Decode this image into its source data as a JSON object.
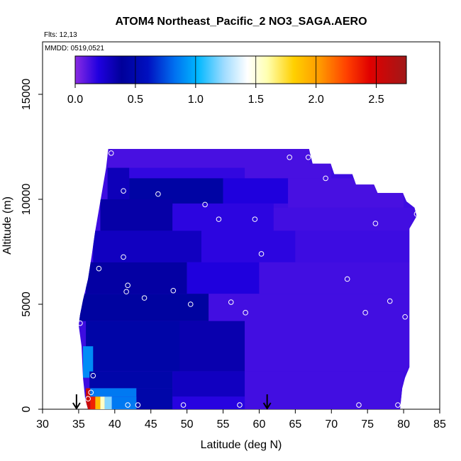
{
  "chart_data": {
    "type": "heatmap",
    "title": "ATOM4 Northeast_Pacific_2 NO3_SAGA.AERO",
    "flights_label": "Flts: 12,13",
    "dates_label": "MMDD: 0519,0521",
    "xlabel": "Latitude (deg N)",
    "ylabel": "Altitude (m)",
    "xlim": [
      30,
      85
    ],
    "ylim": [
      0,
      17500
    ],
    "x_ticks": [
      "30",
      "35",
      "40",
      "45",
      "50",
      "55",
      "60",
      "65",
      "70",
      "75",
      "80",
      "85"
    ],
    "y_ticks": [
      "0",
      "5000",
      "10000",
      "15000"
    ],
    "colorbar": {
      "range": [
        0,
        2.75
      ],
      "tick_labels": [
        "0.0",
        "0.5",
        "1.0",
        "1.5",
        "2.0",
        "2.5"
      ],
      "placement": "top-inside"
    },
    "arrows_at_latitude": [
      34.7,
      61.1
    ],
    "profile_extent": [
      [
        36.3,
        0
      ],
      [
        35.9,
        500
      ],
      [
        35.6,
        1500
      ],
      [
        35.4,
        3000
      ],
      [
        35,
        4000
      ],
      [
        35.2,
        4500
      ],
      [
        35.6,
        5200
      ],
      [
        36.3,
        6200
      ],
      [
        36.8,
        7300
      ],
      [
        37.3,
        8500
      ],
      [
        37.8,
        9500
      ],
      [
        38.3,
        10500
      ],
      [
        38.8,
        11500
      ],
      [
        39.1,
        12400
      ],
      [
        66.9,
        12400
      ],
      [
        67.4,
        11700
      ],
      [
        69.9,
        11700
      ],
      [
        70.4,
        11200
      ],
      [
        72.9,
        11200
      ],
      [
        73.4,
        10700
      ],
      [
        75.9,
        10700
      ],
      [
        76.4,
        10300
      ],
      [
        79.9,
        10300
      ],
      [
        80.4,
        9900
      ],
      [
        81.5,
        9600
      ],
      [
        81.8,
        9200
      ],
      [
        80.8,
        8600
      ],
      [
        80.8,
        2000
      ],
      [
        80.2,
        1500
      ],
      [
        79.8,
        1000
      ],
      [
        79.5,
        0
      ]
    ],
    "cells": [
      {
        "lat": [
          39,
          67
        ],
        "alt": [
          11500,
          12400
        ],
        "value": 0.12
      },
      {
        "lat": [
          42,
          58
        ],
        "alt": [
          11000,
          11500
        ],
        "value": 0.16
      },
      {
        "lat": [
          58,
          70
        ],
        "alt": [
          11000,
          11700
        ],
        "value": 0.12
      },
      {
        "lat": [
          39,
          42
        ],
        "alt": [
          10000,
          11500
        ],
        "value": 0.3
      },
      {
        "lat": [
          42,
          55
        ],
        "alt": [
          9700,
          11000
        ],
        "value": 0.44
      },
      {
        "lat": [
          55,
          64
        ],
        "alt": [
          9800,
          11000
        ],
        "value": 0.2
      },
      {
        "lat": [
          64,
          80
        ],
        "alt": [
          9500,
          11000
        ],
        "value": 0.12
      },
      {
        "lat": [
          38,
          48
        ],
        "alt": [
          8500,
          10000
        ],
        "value": 0.35
      },
      {
        "lat": [
          48,
          62
        ],
        "alt": [
          8500,
          9800
        ],
        "value": 0.17
      },
      {
        "lat": [
          62,
          81.8
        ],
        "alt": [
          8500,
          9600
        ],
        "value": 0.13
      },
      {
        "lat": [
          37,
          52
        ],
        "alt": [
          7000,
          8500
        ],
        "value": 0.28
      },
      {
        "lat": [
          52,
          65
        ],
        "alt": [
          7000,
          8500
        ],
        "value": 0.17
      },
      {
        "lat": [
          65,
          81
        ],
        "alt": [
          7000,
          8500
        ],
        "value": 0.14
      },
      {
        "lat": [
          36,
          50
        ],
        "alt": [
          5500,
          7000
        ],
        "value": 0.36
      },
      {
        "lat": [
          50,
          60
        ],
        "alt": [
          5500,
          7000
        ],
        "value": 0.2
      },
      {
        "lat": [
          60,
          81
        ],
        "alt": [
          5500,
          7000
        ],
        "value": 0.13
      },
      {
        "lat": [
          35,
          53
        ],
        "alt": [
          4200,
          5500
        ],
        "value": 0.42
      },
      {
        "lat": [
          53,
          81
        ],
        "alt": [
          4200,
          5500
        ],
        "value": 0.13
      },
      {
        "lat": [
          36,
          49
        ],
        "alt": [
          1800,
          4200
        ],
        "value": 0.46
      },
      {
        "lat": [
          49,
          58
        ],
        "alt": [
          1800,
          4200
        ],
        "value": 0.33
      },
      {
        "lat": [
          58,
          81
        ],
        "alt": [
          1800,
          4200
        ],
        "value": 0.13
      },
      {
        "lat": [
          35.6,
          37
        ],
        "alt": [
          1500,
          3000
        ],
        "value": 0.9
      },
      {
        "lat": [
          36.5,
          48
        ],
        "alt": [
          1000,
          1800
        ],
        "value": 0.47
      },
      {
        "lat": [
          48,
          58
        ],
        "alt": [
          600,
          1800
        ],
        "value": 0.28
      },
      {
        "lat": [
          58,
          80
        ],
        "alt": [
          0,
          1800
        ],
        "value": 0.13
      },
      {
        "lat": [
          36,
          43
        ],
        "alt": [
          600,
          1000
        ],
        "value": 0.85
      },
      {
        "lat": [
          43,
          48
        ],
        "alt": [
          0,
          1000
        ],
        "value": 0.47
      },
      {
        "lat": [
          48,
          58
        ],
        "alt": [
          0,
          600
        ],
        "value": 0.18
      },
      {
        "lat": [
          36,
          36.6
        ],
        "alt": [
          0,
          1000
        ],
        "value": 2.55
      },
      {
        "lat": [
          36.6,
          37.3
        ],
        "alt": [
          0,
          600
        ],
        "value": 2.35
      },
      {
        "lat": [
          37.3,
          38
        ],
        "alt": [
          0,
          600
        ],
        "value": 1.9
      },
      {
        "lat": [
          38,
          38.6
        ],
        "alt": [
          0,
          600
        ],
        "value": 1.55
      },
      {
        "lat": [
          38.6,
          39.6
        ],
        "alt": [
          0,
          600
        ],
        "value": 1.2
      },
      {
        "lat": [
          39.6,
          43
        ],
        "alt": [
          0,
          600
        ],
        "value": 0.85
      }
    ],
    "points": [
      {
        "lat": 39.5,
        "alt": 12200
      },
      {
        "lat": 64.2,
        "alt": 12000
      },
      {
        "lat": 66.8,
        "alt": 12000
      },
      {
        "lat": 69.2,
        "alt": 11000
      },
      {
        "lat": 41.2,
        "alt": 10400
      },
      {
        "lat": 46,
        "alt": 10250
      },
      {
        "lat": 52.5,
        "alt": 9750
      },
      {
        "lat": 54.4,
        "alt": 9050
      },
      {
        "lat": 59.4,
        "alt": 9050
      },
      {
        "lat": 76.1,
        "alt": 8850
      },
      {
        "lat": 81.8,
        "alt": 9300
      },
      {
        "lat": 41.2,
        "alt": 7250
      },
      {
        "lat": 60.3,
        "alt": 7400
      },
      {
        "lat": 37.8,
        "alt": 6700
      },
      {
        "lat": 41.8,
        "alt": 5900
      },
      {
        "lat": 41.6,
        "alt": 5600
      },
      {
        "lat": 48.1,
        "alt": 5650
      },
      {
        "lat": 72.2,
        "alt": 6200
      },
      {
        "lat": 44.1,
        "alt": 5300
      },
      {
        "lat": 50.5,
        "alt": 5000
      },
      {
        "lat": 56.1,
        "alt": 5100
      },
      {
        "lat": 78.1,
        "alt": 5150
      },
      {
        "lat": 58.1,
        "alt": 4600
      },
      {
        "lat": 74.7,
        "alt": 4600
      },
      {
        "lat": 80.2,
        "alt": 4400
      },
      {
        "lat": 35.2,
        "alt": 4100
      },
      {
        "lat": 37,
        "alt": 1600
      },
      {
        "lat": 36.7,
        "alt": 800
      },
      {
        "lat": 36.3,
        "alt": 500
      },
      {
        "lat": 41.8,
        "alt": 200
      },
      {
        "lat": 43.2,
        "alt": 200
      },
      {
        "lat": 49.5,
        "alt": 200
      },
      {
        "lat": 57.3,
        "alt": 200
      },
      {
        "lat": 73.8,
        "alt": 200
      },
      {
        "lat": 79.2,
        "alt": 200
      }
    ]
  }
}
